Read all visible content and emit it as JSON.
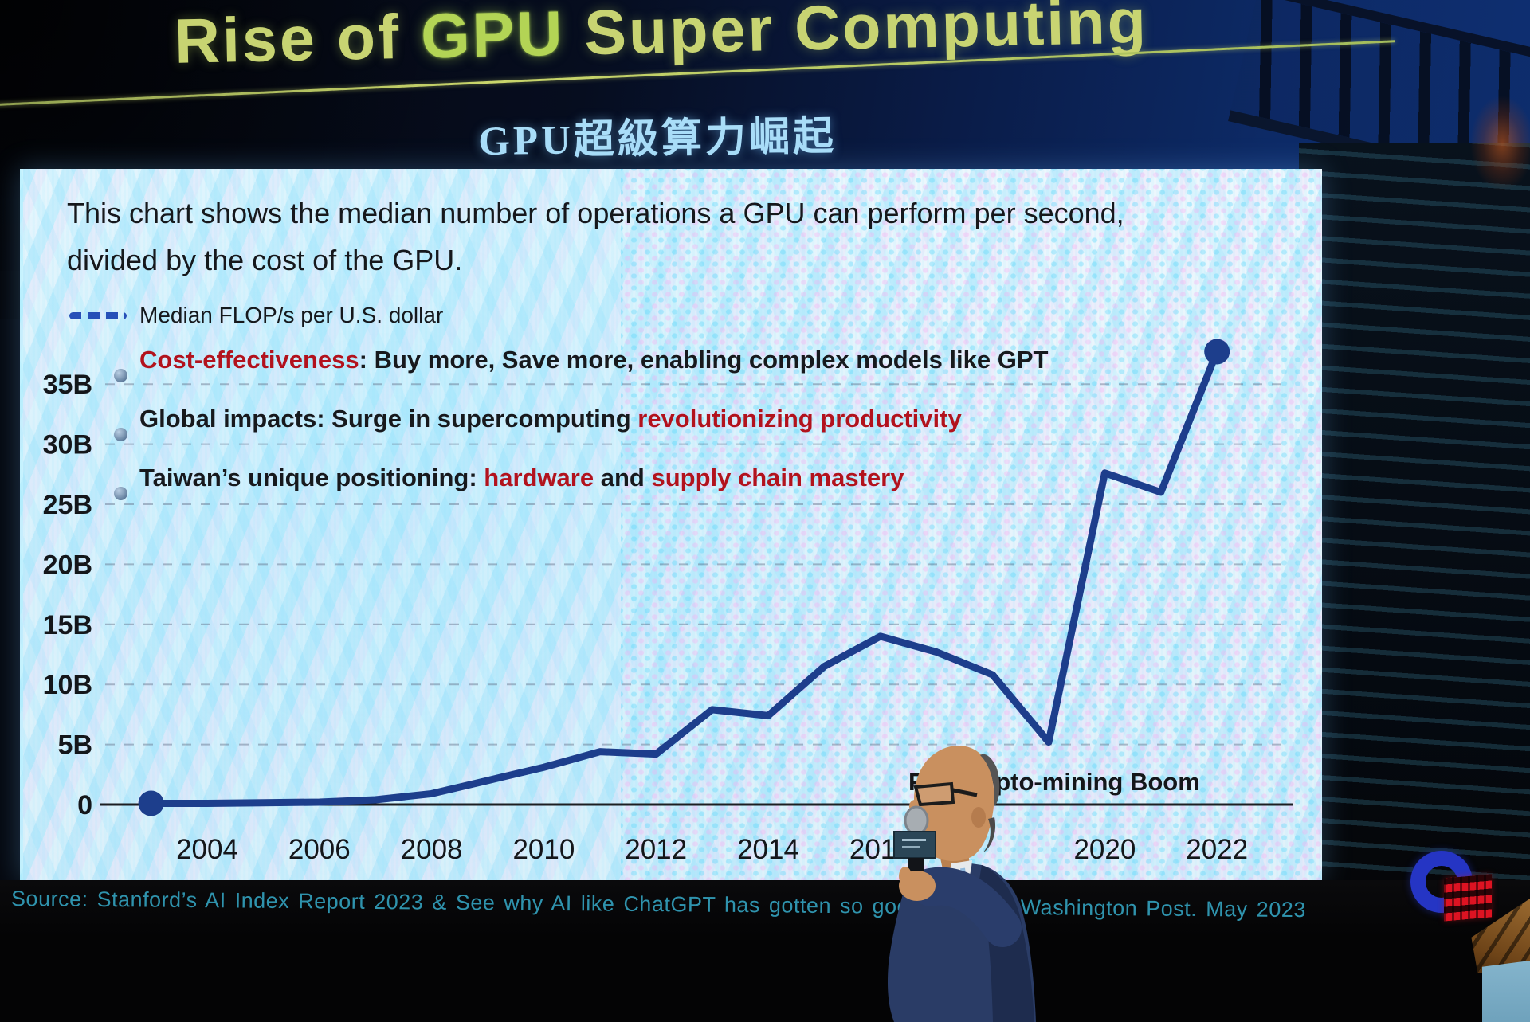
{
  "slide": {
    "title": {
      "prefix": "Rise of ",
      "highlight": "GPU",
      "suffix": " Super Computing"
    },
    "subtitle_zh": "GPU超級算力崛起",
    "panel": {
      "description_line1": "This chart shows the median number of operations a GPU can perform per second,",
      "description_line2": "divided by the cost of the GPU.",
      "legend_label": "Median FLOP/s per U.S. dollar",
      "bullets": [
        {
          "em": "Cost-effectiveness",
          "rest": ": Buy more, Save more, enabling complex models like GPT"
        },
        {
          "pre": "Global impacts: Surge in supercomputing ",
          "em": "revolutionizing productivity"
        },
        {
          "pre": "Taiwan’s unique positioning: ",
          "em1": "hardware",
          "mid": " and ",
          "em2": "supply chain mastery"
        }
      ]
    },
    "annotation": {
      "visible_prefix": "F",
      "visible_text": "ypto-mining Boom"
    },
    "source": "Source: Stanford’s AI Index Report 2023 & See why AI like ChatGPT has gotten so good, so fast. Washington Post. May 2023"
  },
  "chart_data": {
    "type": "line",
    "title": "Median FLOP/s per U.S. dollar",
    "x": [
      2003,
      2004,
      2005,
      2006,
      2007,
      2008,
      2009,
      2010,
      2011,
      2012,
      2013,
      2014,
      2015,
      2016,
      2017,
      2018,
      2019,
      2020,
      2021,
      2022
    ],
    "values": [
      0.1,
      0.1,
      0.15,
      0.2,
      0.4,
      0.9,
      2.0,
      3.1,
      4.4,
      4.2,
      7.9,
      7.4,
      11.5,
      14.0,
      12.7,
      10.8,
      5.2,
      27.6,
      26.0,
      37.7
    ],
    "unit": "billion FLOP/s per U.S. dollar",
    "ylabel": "",
    "xlabel": "",
    "ylim": [
      0,
      38
    ],
    "grid": true,
    "legend_position": "top-left",
    "y_tick_labels": [
      "0",
      "5B",
      "10B",
      "15B",
      "20B",
      "25B",
      "30B",
      "35B"
    ],
    "x_tick_labels_visible": [
      "2004",
      "2006",
      "2008",
      "2010",
      "2012",
      "2014",
      "2016",
      "2020",
      "2022"
    ],
    "annotation_note": "Crypto-mining Boom label near 2019 dip; left part occluded, visible: F…ypto-mining Boom",
    "line_color": "#1d3e8c"
  },
  "colors": {
    "accent_red": "#b2121d",
    "line_blue": "#1d3e8c",
    "title_yellow_green": "#c8d472",
    "subtitle_blue": "#a9ddf8",
    "source_teal": "#2f93ad",
    "logo_blue": "#2535c4",
    "logo_red": "#dd1322"
  }
}
